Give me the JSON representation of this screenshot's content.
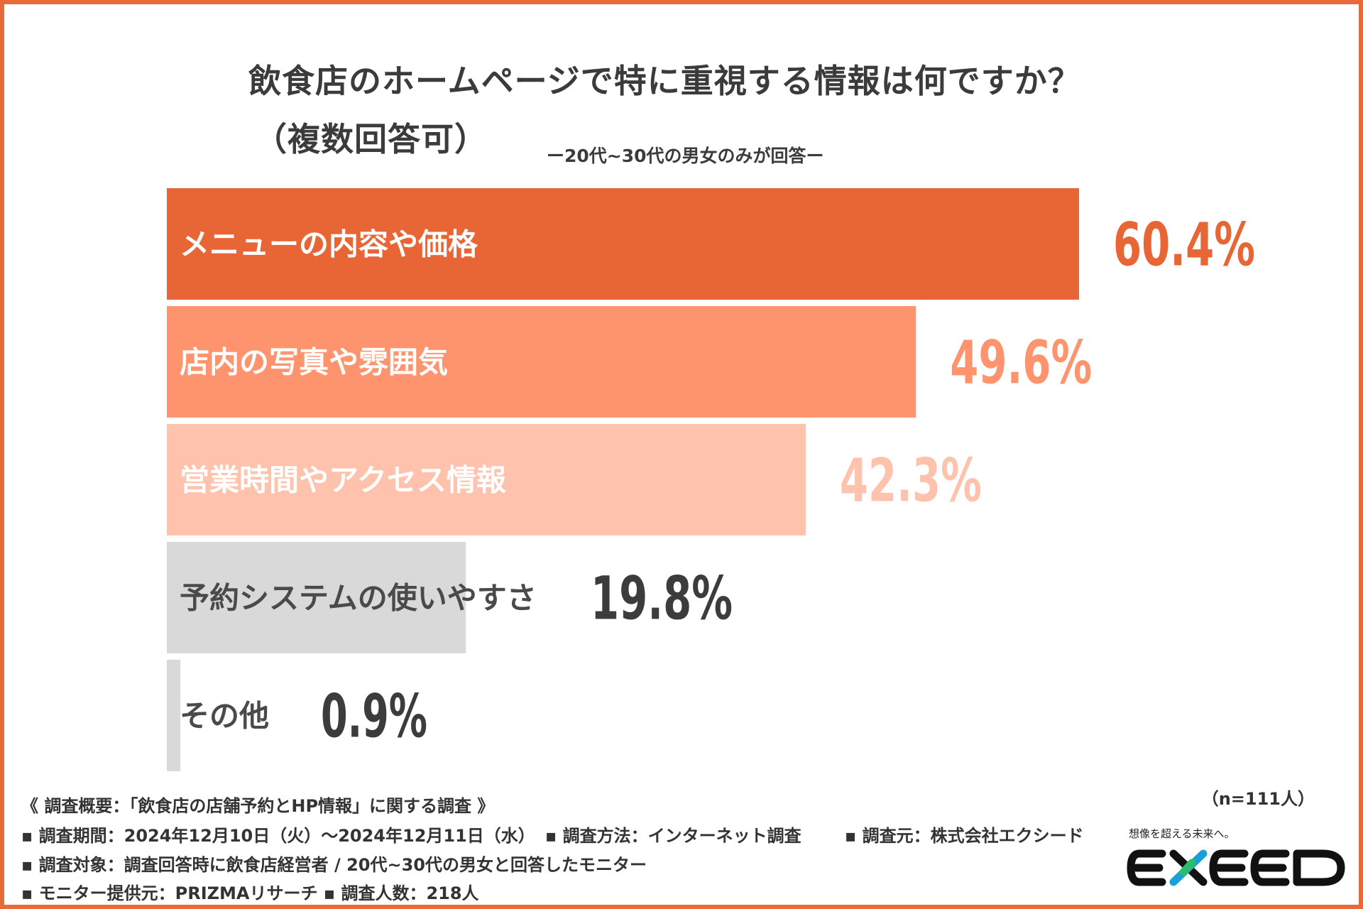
{
  "title": "飲食店のホームページで特に重視する情報は何ですか？",
  "subtitle": "（複数回答可）",
  "note": "ー20代~30代の男女のみが回答ー",
  "n_label": "（n=111人）",
  "colors": {
    "frame": "#e86a3a",
    "bar1": "#e86535",
    "bar2": "#fe946e",
    "bar3": "#fec2ad",
    "bar_other": "#d9d9d9"
  },
  "chart_data": {
    "type": "bar",
    "orientation": "horizontal",
    "title": "飲食店のホームページで特に重視する情報は何ですか？",
    "subtitle": "（複数回答可）",
    "categories": [
      "メニューの内容や価格",
      "店内の写真や雰囲気",
      "営業時間やアクセス情報",
      "予約システムの使いやすさ",
      "その他"
    ],
    "values": [
      60.4,
      49.6,
      42.3,
      19.8,
      0.9
    ],
    "value_labels": [
      "60.4%",
      "49.6%",
      "42.3%",
      "19.8%",
      "0.9%"
    ],
    "unit": "%",
    "xlim": [
      0,
      60.4
    ],
    "grid": false,
    "legend": "none"
  },
  "footer": {
    "line1": "《 調査概要：「飲食店の店舗予約とHP情報」に関する調査 》",
    "line2a": "▪ 調査期間：2024年12月10日（火）〜2024年12月11日（水）",
    "line2b": "▪ 調査方法：インターネット調査",
    "line2c": "▪ 調査元：株式会社エクシード",
    "line3": "▪ 調査対象：調査回答時に飲食店経営者 / 20代~30代の男女と回答したモニター",
    "line4": "▪ モニター提供元：PRIZMAリサーチ ▪ 調査人数：218人"
  },
  "logo": {
    "tagline": "想像を超える未来へ。",
    "text": "EXEED"
  }
}
